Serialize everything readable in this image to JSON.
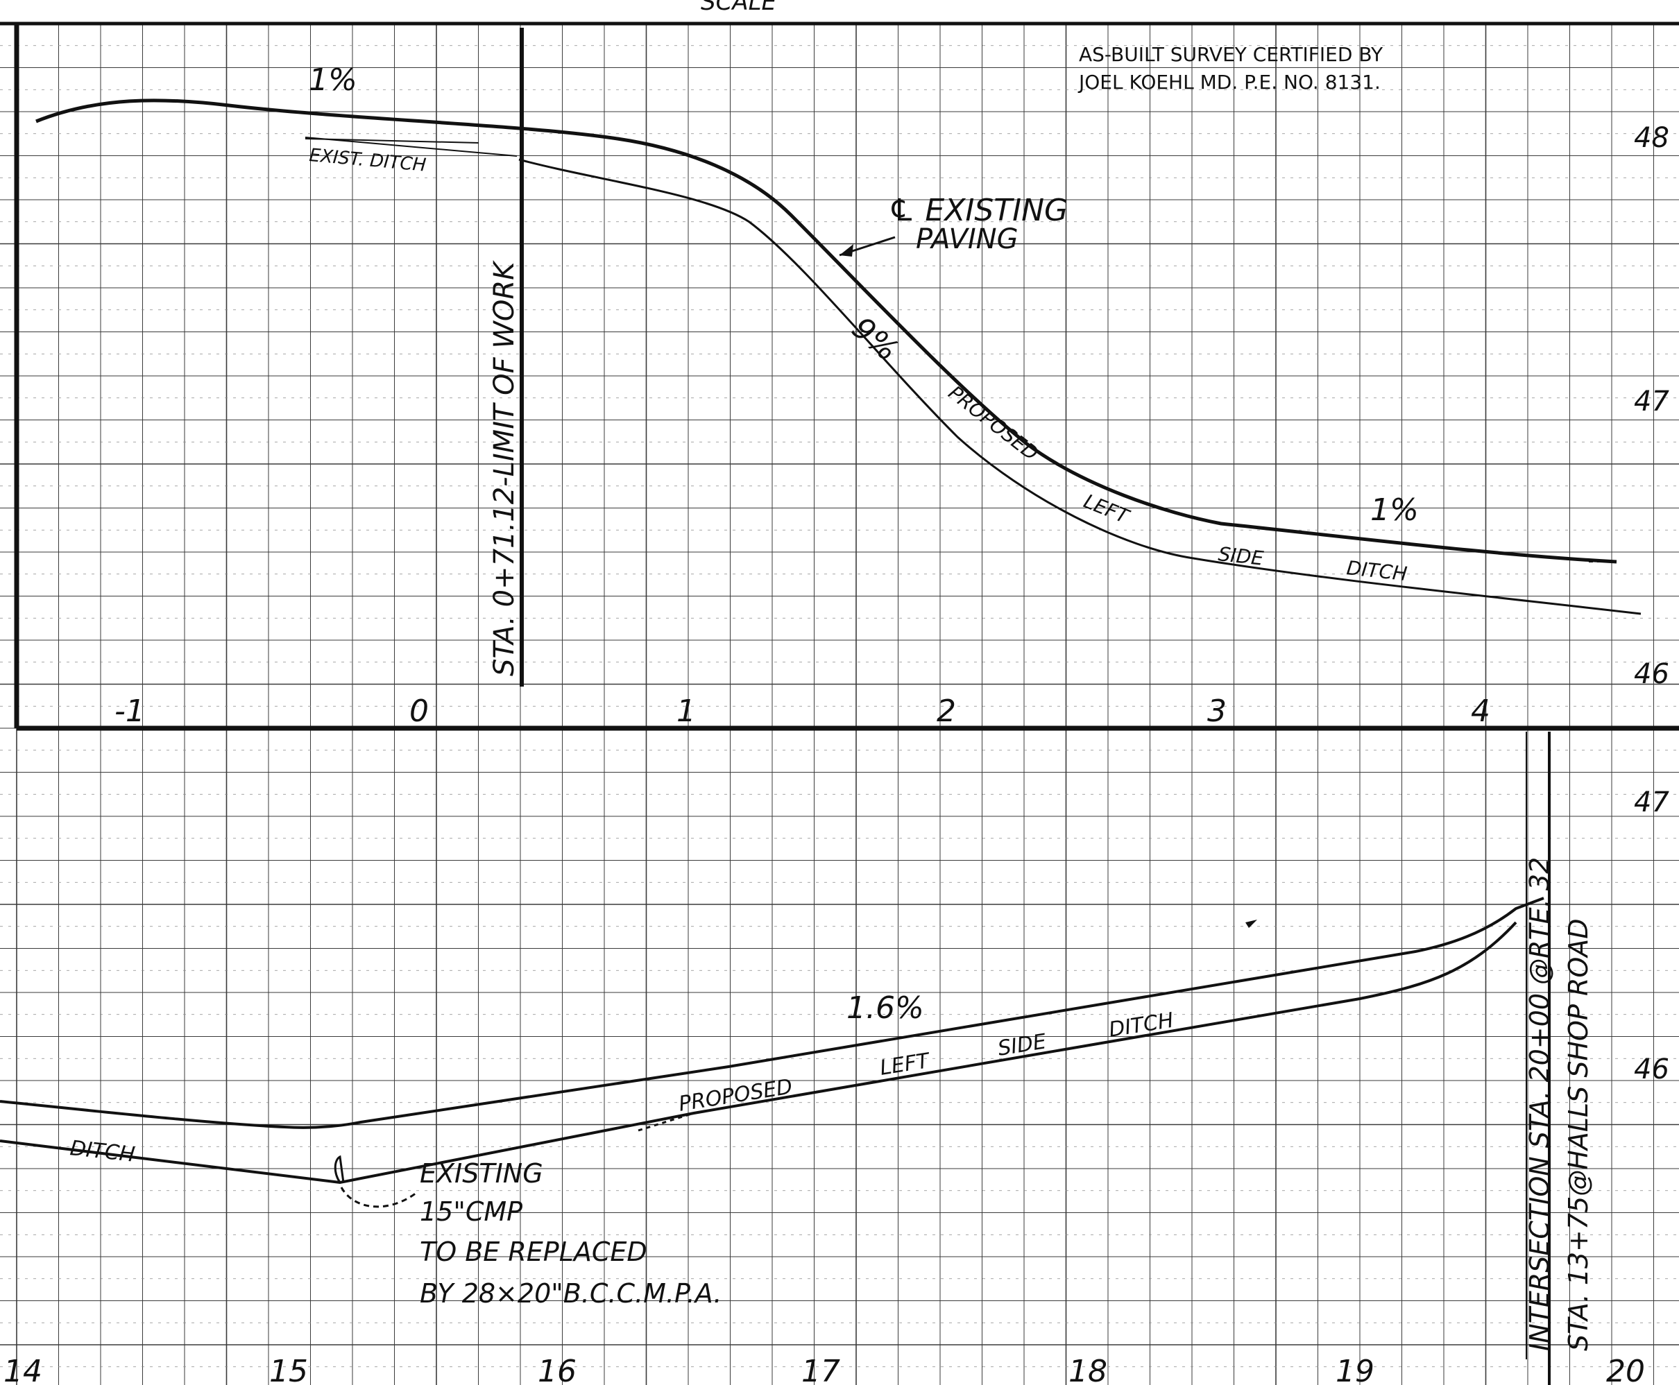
{
  "sheet": {
    "header_fragment": "SCALE",
    "ink_color": "#111111",
    "grid_color": "#3a3a3a",
    "paper_color": "#ffffff"
  },
  "upper_profile": {
    "station_labels": [
      "-1",
      "0",
      "1",
      "2",
      "3",
      "4"
    ],
    "elevation_labels": [
      "48",
      "47",
      "46"
    ],
    "certification": [
      "AS-BUILT SURVEY CERTIFIED BY",
      "JOEL KOEHL MD. P.E. NO. 8131."
    ],
    "grade_labels": [
      "1%",
      "9%",
      "1%"
    ],
    "existing_ditch_label": "EXIST. DITCH",
    "limit_of_work": "STA. 0+71.12-LIMIT OF WORK",
    "existing_paving_label": [
      "℄ EXISTING",
      "PAVING"
    ],
    "proposed_ditch_label": [
      "PROPOSED",
      "LEFT",
      "SIDE",
      "DITCH"
    ]
  },
  "lower_profile": {
    "station_labels": [
      "14",
      "15",
      "16",
      "17",
      "18",
      "19",
      "20"
    ],
    "elevation_labels": [
      "47",
      "46"
    ],
    "grade_label": "1.6%",
    "proposed_ditch_label": [
      "PROPOSED",
      "LEFT",
      "SIDE",
      "DITCH"
    ],
    "ditch_fragment": "DITCH",
    "culvert_note": [
      "EXISTING",
      "15\"CMP",
      "TO BE REPLACED",
      "BY 28×20\"B.C.C.M.P.A."
    ],
    "intersection_label": "INTERSECTION STA. 20+00 @RTE. 32",
    "halls_shop_label": "STA. 13+75@HALLS SHOP ROAD"
  }
}
